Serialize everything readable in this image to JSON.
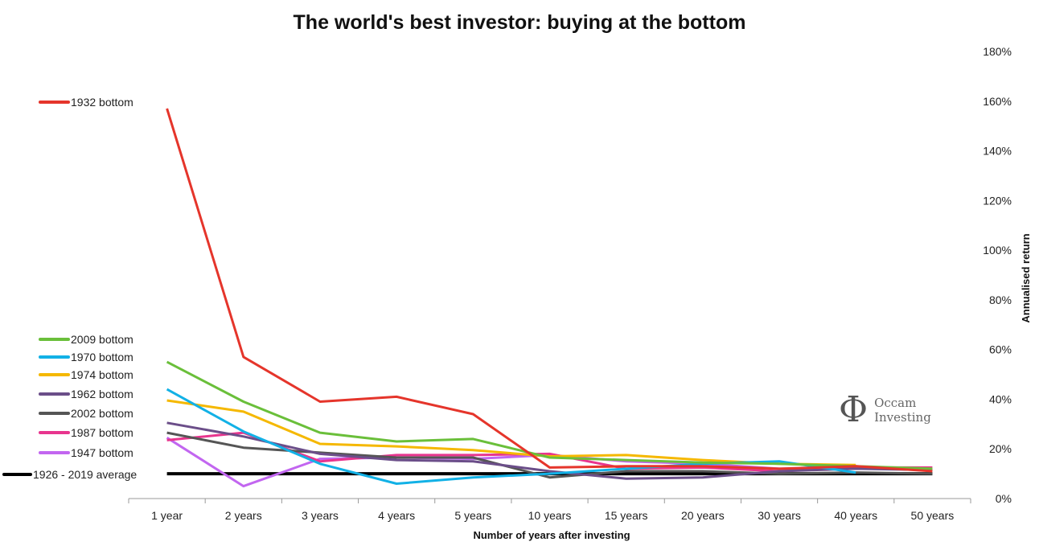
{
  "chart_data": {
    "type": "line",
    "title": "The world's best investor: buying at the bottom",
    "xlabel": "Number of years after investing",
    "ylabel": "Annualised return",
    "categories": [
      "1 year",
      "2 years",
      "3 years",
      "4 years",
      "5 years",
      "10 years",
      "15 years",
      "20 years",
      "30 years",
      "40 years",
      "50 years"
    ],
    "ylim": [
      0,
      180
    ],
    "yticks": [
      "0%",
      "20%",
      "40%",
      "60%",
      "80%",
      "100%",
      "120%",
      "140%",
      "160%",
      "180%"
    ],
    "y_axis_side": "right",
    "legend_position": "left",
    "series": [
      {
        "name": "1932 bottom",
        "color": "#e5352b",
        "values": [
          157,
          57,
          39,
          41,
          34,
          12.5,
          13,
          13,
          12,
          13,
          11
        ]
      },
      {
        "name": "2009 bottom",
        "color": "#6abf3a",
        "values": [
          55,
          39,
          26.5,
          23,
          24,
          16.5,
          15.5,
          14.5,
          14,
          13,
          12
        ]
      },
      {
        "name": "1970 bottom",
        "color": "#12b1e6",
        "values": [
          44,
          27,
          14,
          6,
          8.5,
          10,
          12,
          14,
          15,
          10.5,
          null
        ]
      },
      {
        "name": "1974 bottom",
        "color": "#f5b800",
        "values": [
          39.5,
          35,
          22,
          21,
          19.5,
          17,
          17.5,
          15.5,
          14,
          13.5,
          null
        ]
      },
      {
        "name": "1962 bottom",
        "color": "#6b4e89",
        "values": [
          30.5,
          25,
          18,
          15.5,
          15,
          11,
          8,
          8.5,
          11,
          12,
          11.5
        ]
      },
      {
        "name": "2002 bottom",
        "color": "#555555",
        "values": [
          26.5,
          20.5,
          18.5,
          16.5,
          16.5,
          8.5,
          11,
          11,
          10,
          10.5,
          10
        ]
      },
      {
        "name": "1987 bottom",
        "color": "#e8358e",
        "values": [
          23.5,
          26.5,
          15,
          17.5,
          17.5,
          18,
          12,
          12.5,
          11,
          12.5,
          12.5
        ]
      },
      {
        "name": "1947 bottom",
        "color": "#c266f0",
        "values": [
          24.5,
          5,
          16,
          16.5,
          16,
          17.5,
          15,
          14,
          12,
          12,
          12
        ]
      },
      {
        "name": "1926 - 2019 average",
        "color": "#000000",
        "values": [
          10,
          10,
          10,
          10,
          10,
          10,
          10,
          10,
          10,
          10,
          10
        ]
      }
    ]
  },
  "logo": {
    "mark": "Φ",
    "line1": "Occam",
    "line2": "Investing"
  }
}
